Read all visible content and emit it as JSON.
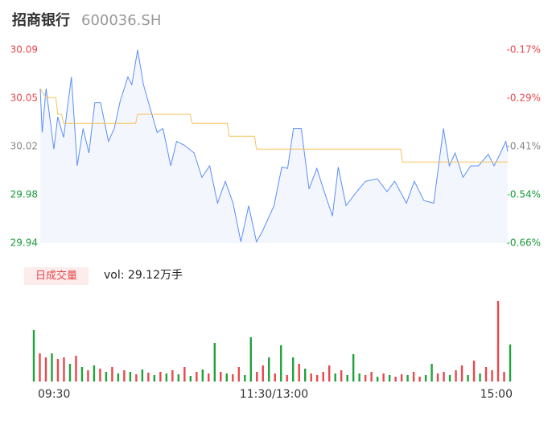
{
  "header": {
    "title": "招商银行",
    "code": "600036.SH"
  },
  "chart_data": [
    {
      "type": "line",
      "x": [
        0,
        1,
        3,
        7,
        9,
        12,
        16,
        19,
        22,
        25,
        28,
        31,
        35,
        38,
        41,
        45,
        47,
        50,
        53,
        56,
        60,
        63,
        67,
        70,
        74,
        79,
        83,
        87,
        91,
        95,
        99,
        103,
        107,
        111,
        114,
        120,
        124,
        127,
        130,
        134,
        138,
        142,
        146,
        150,
        153,
        157,
        162,
        167,
        173,
        178,
        182,
        188,
        192,
        197,
        202,
        207,
        210,
        213,
        217,
        221,
        225,
        230,
        233,
        236,
        239,
        240
      ],
      "series": [
        {
          "name": "price",
          "color": "#5b8ff9",
          "values": [
            30.06,
            30.026,
            30.06,
            30.013,
            30.038,
            30.022,
            30.069,
            30.0,
            30.029,
            30.01,
            30.049,
            30.049,
            30.019,
            30.029,
            30.05,
            30.069,
            30.063,
            30.09,
            30.063,
            30.047,
            30.026,
            30.029,
            30.0,
            30.019,
            30.016,
            30.01,
            29.991,
            30.0,
            29.971,
            29.988,
            29.971,
            29.941,
            29.969,
            29.941,
            29.949,
            29.969,
            29.999,
            29.998,
            30.029,
            30.029,
            29.982,
            29.998,
            29.979,
            29.961,
            29.999,
            29.969,
            29.979,
            29.988,
            29.99,
            29.98,
            29.988,
            29.971,
            29.988,
            29.973,
            29.971,
            30.029,
            30.0,
            30.01,
            29.991,
            30.0,
            30.0,
            30.009,
            30.0,
            30.009,
            30.019,
            30.011
          ]
        },
        {
          "name": "average",
          "color": "#f6c25c",
          "x": [
            0,
            3,
            8,
            9,
            11,
            12,
            49,
            50,
            77,
            78,
            96,
            97,
            110,
            111,
            185,
            186,
            240
          ],
          "values": [
            30.06,
            30.053,
            30.053,
            30.04,
            30.04,
            30.033,
            30.033,
            30.04,
            30.04,
            30.033,
            30.033,
            30.023,
            30.023,
            30.013,
            30.013,
            30.003,
            30.003
          ]
        }
      ],
      "xlim": [
        0,
        240
      ],
      "xticks": [
        {
          "value": 0,
          "label": "09:30"
        },
        {
          "value": 120,
          "label": "11:30/13:00"
        },
        {
          "value": 240,
          "label": "15:00"
        }
      ],
      "ylim": [
        29.94,
        30.09
      ],
      "yticks": [
        {
          "value": 29.94,
          "label": "29.94"
        },
        {
          "value": 29.9775,
          "label": "29.98"
        },
        {
          "value": 30.015,
          "label": "30.02"
        },
        {
          "value": 30.0525,
          "label": "30.05"
        },
        {
          "value": 30.09,
          "label": "30.09"
        }
      ],
      "ytick_colors": [
        "#1a9a3a",
        "#1a9a3a",
        "#888888",
        "#e8474b",
        "#e8474b"
      ],
      "y2lim": [
        -0.66,
        -0.17
      ],
      "y2ticks": [
        {
          "value": -0.66,
          "label": "-0.66%"
        },
        {
          "value": -0.5375,
          "label": "-0.54%"
        },
        {
          "value": -0.415,
          "label": "-0.41%"
        },
        {
          "value": -0.2925,
          "label": "-0.29%"
        },
        {
          "value": -0.17,
          "label": "-0.17%"
        }
      ],
      "area_color": "#f3f6fd"
    },
    {
      "type": "bar",
      "legend": "日成交量",
      "summary": "vol: 29.12万手",
      "values": [
        64,
        35,
        30,
        35,
        28,
        30,
        22,
        32,
        18,
        14,
        20,
        16,
        12,
        18,
        10,
        14,
        12,
        9,
        15,
        11,
        8,
        12,
        10,
        14,
        9,
        18,
        7,
        12,
        15,
        10,
        48,
        12,
        10,
        9,
        18,
        8,
        55,
        12,
        20,
        30,
        10,
        45,
        8,
        30,
        22,
        16,
        10,
        8,
        12,
        20,
        10,
        14,
        8,
        34,
        10,
        8,
        12,
        6,
        10,
        8,
        6,
        9,
        8,
        12,
        6,
        8,
        22,
        10,
        12,
        8,
        14,
        20,
        8,
        26,
        10,
        18,
        14,
        100,
        12,
        46
      ],
      "colors": [
        "#1fa23a",
        "#e8474b",
        "#e8474b",
        "#1fa23a",
        "#e8474b",
        "#e8474b",
        "#1fa23a",
        "#e8474b",
        "#1fa23a",
        "#e8474b",
        "#1fa23a",
        "#e8474b",
        "#1fa23a",
        "#e8474b",
        "#1fa23a",
        "#e8474b",
        "#1fa23a",
        "#e8474b",
        "#1fa23a",
        "#e8474b",
        "#1fa23a",
        "#e8474b",
        "#1fa23a",
        "#e8474b",
        "#1fa23a",
        "#e8474b",
        "#1fa23a",
        "#e8474b",
        "#1fa23a",
        "#e8474b",
        "#1fa23a",
        "#e8474b",
        "#1fa23a",
        "#e8474b",
        "#e8474b",
        "#1fa23a",
        "#1fa23a",
        "#e8474b",
        "#e8474b",
        "#1fa23a",
        "#e8474b",
        "#1fa23a",
        "#e8474b",
        "#1fa23a",
        "#e8474b",
        "#1fa23a",
        "#e8474b",
        "#e8474b",
        "#e8474b",
        "#e8474b",
        "#1fa23a",
        "#e8474b",
        "#1fa23a",
        "#1fa23a",
        "#1fa23a",
        "#e8474b",
        "#e8474b",
        "#1fa23a",
        "#e8474b",
        "#1fa23a",
        "#e8474b",
        "#e8474b",
        "#1fa23a",
        "#e8474b",
        "#e8474b",
        "#1fa23a",
        "#1fa23a",
        "#e8474b",
        "#e8474b",
        "#1fa23a",
        "#e8474b",
        "#e8474b",
        "#1fa23a",
        "#e8474b",
        "#1fa23a",
        "#e8474b",
        "#e8474b",
        "#e8474b",
        "#e8474b",
        "#1fa23a"
      ],
      "ylim": [
        0,
        100
      ]
    }
  ]
}
